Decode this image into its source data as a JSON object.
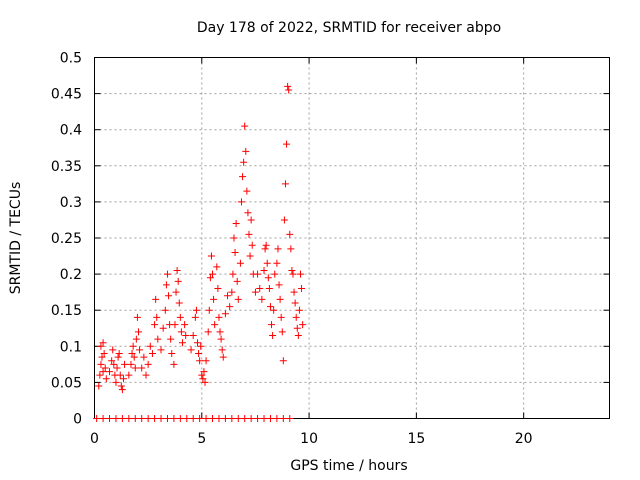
{
  "chart_data": {
    "type": "scatter",
    "title": "Day 178 of 2022, SRMTID for receiver abpo",
    "xlabel": "GPS time / hours",
    "ylabel": "SRMTID / TECUs",
    "xlim": [
      0,
      24
    ],
    "ylim": [
      0,
      0.5
    ],
    "xticks": [
      0,
      5,
      10,
      15,
      20
    ],
    "yticks": [
      0,
      0.05,
      0.1,
      0.15,
      0.2,
      0.25,
      0.3,
      0.35,
      0.4,
      0.45,
      0.5
    ],
    "grid": true,
    "marker": "+",
    "color": "#ff0000",
    "series": [
      {
        "name": "SRMTID",
        "points": [
          [
            0.2,
            0.045
          ],
          [
            0.25,
            0.06
          ],
          [
            0.3,
            0.075
          ],
          [
            0.35,
            0.085
          ],
          [
            0.3,
            0.1
          ],
          [
            0.4,
            0.105
          ],
          [
            0.45,
            0.09
          ],
          [
            0.5,
            0.07
          ],
          [
            0.55,
            0.055
          ],
          [
            0.4,
            0.065
          ],
          [
            0.7,
            0.065
          ],
          [
            0.8,
            0.08
          ],
          [
            0.85,
            0.095
          ],
          [
            0.9,
            0.075
          ],
          [
            0.95,
            0.06
          ],
          [
            1.0,
            0.05
          ],
          [
            1.05,
            0.07
          ],
          [
            1.1,
            0.085
          ],
          [
            1.2,
            0.06
          ],
          [
            1.25,
            0.045
          ],
          [
            1.3,
            0.04
          ],
          [
            1.35,
            0.055
          ],
          [
            1.4,
            0.075
          ],
          [
            1.15,
            0.09
          ],
          [
            1.6,
            0.06
          ],
          [
            1.7,
            0.075
          ],
          [
            1.75,
            0.09
          ],
          [
            1.8,
            0.1
          ],
          [
            1.85,
            0.085
          ],
          [
            1.9,
            0.07
          ],
          [
            1.95,
            0.11
          ],
          [
            2.0,
            0.14
          ],
          [
            2.05,
            0.12
          ],
          [
            2.1,
            0.095
          ],
          [
            2.2,
            0.07
          ],
          [
            2.3,
            0.085
          ],
          [
            2.4,
            0.06
          ],
          [
            2.5,
            0.075
          ],
          [
            2.6,
            0.1
          ],
          [
            2.7,
            0.09
          ],
          [
            2.8,
            0.13
          ],
          [
            2.85,
            0.165
          ],
          [
            2.9,
            0.14
          ],
          [
            2.95,
            0.11
          ],
          [
            3.1,
            0.095
          ],
          [
            3.2,
            0.125
          ],
          [
            3.3,
            0.15
          ],
          [
            3.35,
            0.185
          ],
          [
            3.4,
            0.2
          ],
          [
            3.45,
            0.17
          ],
          [
            3.5,
            0.13
          ],
          [
            3.55,
            0.11
          ],
          [
            3.6,
            0.09
          ],
          [
            3.7,
            0.075
          ],
          [
            3.75,
            0.13
          ],
          [
            3.8,
            0.175
          ],
          [
            3.85,
            0.205
          ],
          [
            3.9,
            0.19
          ],
          [
            3.95,
            0.16
          ],
          [
            4.0,
            0.14
          ],
          [
            4.05,
            0.12
          ],
          [
            4.1,
            0.105
          ],
          [
            4.2,
            0.13
          ],
          [
            4.25,
            0.115
          ],
          [
            4.5,
            0.095
          ],
          [
            4.6,
            0.115
          ],
          [
            4.7,
            0.14
          ],
          [
            4.75,
            0.15
          ],
          [
            4.8,
            0.105
          ],
          [
            4.85,
            0.09
          ],
          [
            4.9,
            0.08
          ],
          [
            4.95,
            0.1
          ],
          [
            5.0,
            0.06
          ],
          [
            5.05,
            0.055
          ],
          [
            5.1,
            0.065
          ],
          [
            5.15,
            0.05
          ],
          [
            5.2,
            0.08
          ],
          [
            5.3,
            0.12
          ],
          [
            5.35,
            0.15
          ],
          [
            5.4,
            0.195
          ],
          [
            5.45,
            0.225
          ],
          [
            5.5,
            0.2
          ],
          [
            5.55,
            0.165
          ],
          [
            5.6,
            0.13
          ],
          [
            5.7,
            0.21
          ],
          [
            5.75,
            0.18
          ],
          [
            5.8,
            0.14
          ],
          [
            5.85,
            0.12
          ],
          [
            5.9,
            0.11
          ],
          [
            5.95,
            0.095
          ],
          [
            6.0,
            0.085
          ],
          [
            6.1,
            0.145
          ],
          [
            6.2,
            0.17
          ],
          [
            6.3,
            0.155
          ],
          [
            6.4,
            0.175
          ],
          [
            6.45,
            0.2
          ],
          [
            6.5,
            0.25
          ],
          [
            6.55,
            0.23
          ],
          [
            6.6,
            0.27
          ],
          [
            6.65,
            0.19
          ],
          [
            6.7,
            0.165
          ],
          [
            6.8,
            0.215
          ],
          [
            6.85,
            0.3
          ],
          [
            6.9,
            0.335
          ],
          [
            6.95,
            0.355
          ],
          [
            7.0,
            0.405
          ],
          [
            7.05,
            0.37
          ],
          [
            7.1,
            0.315
          ],
          [
            7.15,
            0.285
          ],
          [
            7.2,
            0.255
          ],
          [
            7.25,
            0.225
          ],
          [
            7.3,
            0.275
          ],
          [
            7.35,
            0.24
          ],
          [
            7.4,
            0.2
          ],
          [
            7.5,
            0.175
          ],
          [
            7.6,
            0.2
          ],
          [
            7.7,
            0.18
          ],
          [
            7.8,
            0.165
          ],
          [
            7.9,
            0.205
          ],
          [
            7.95,
            0.235
          ],
          [
            8.0,
            0.24
          ],
          [
            8.05,
            0.215
          ],
          [
            8.1,
            0.195
          ],
          [
            8.15,
            0.18
          ],
          [
            8.2,
            0.155
          ],
          [
            8.25,
            0.13
          ],
          [
            8.3,
            0.115
          ],
          [
            8.35,
            0.15
          ],
          [
            8.4,
            0.2
          ],
          [
            8.5,
            0.215
          ],
          [
            8.55,
            0.235
          ],
          [
            8.6,
            0.185
          ],
          [
            8.65,
            0.165
          ],
          [
            8.7,
            0.14
          ],
          [
            8.75,
            0.12
          ],
          [
            8.8,
            0.08
          ],
          [
            8.85,
            0.275
          ],
          [
            8.9,
            0.325
          ],
          [
            8.95,
            0.38
          ],
          [
            9.0,
            0.46
          ],
          [
            9.05,
            0.455
          ],
          [
            9.1,
            0.255
          ],
          [
            9.15,
            0.235
          ],
          [
            9.2,
            0.205
          ],
          [
            9.25,
            0.2
          ],
          [
            9.3,
            0.175
          ],
          [
            9.35,
            0.16
          ],
          [
            9.4,
            0.14
          ],
          [
            9.45,
            0.125
          ],
          [
            9.5,
            0.115
          ],
          [
            9.55,
            0.15
          ],
          [
            9.6,
            0.2
          ],
          [
            9.65,
            0.18
          ],
          [
            9.7,
            0.13
          ],
          [
            0.1,
            0.0
          ],
          [
            0.4,
            0.0
          ],
          [
            0.7,
            0.0
          ],
          [
            1.0,
            0.0
          ],
          [
            1.3,
            0.0
          ],
          [
            1.6,
            0.0
          ],
          [
            1.9,
            0.0
          ],
          [
            2.2,
            0.0
          ],
          [
            2.5,
            0.0
          ],
          [
            2.8,
            0.0
          ],
          [
            3.1,
            0.0
          ],
          [
            3.4,
            0.0
          ],
          [
            3.7,
            0.0
          ],
          [
            4.0,
            0.0
          ],
          [
            4.3,
            0.0
          ],
          [
            4.6,
            0.0
          ],
          [
            4.9,
            0.0
          ],
          [
            5.2,
            0.0
          ],
          [
            5.5,
            0.0
          ],
          [
            5.8,
            0.0
          ],
          [
            6.1,
            0.0
          ],
          [
            6.4,
            0.0
          ],
          [
            6.7,
            0.0
          ],
          [
            7.0,
            0.0
          ],
          [
            7.3,
            0.0
          ],
          [
            7.6,
            0.0
          ],
          [
            7.9,
            0.0
          ],
          [
            8.2,
            0.0
          ],
          [
            8.5,
            0.0
          ],
          [
            8.8,
            0.0
          ],
          [
            9.1,
            0.0
          ]
        ]
      }
    ]
  }
}
